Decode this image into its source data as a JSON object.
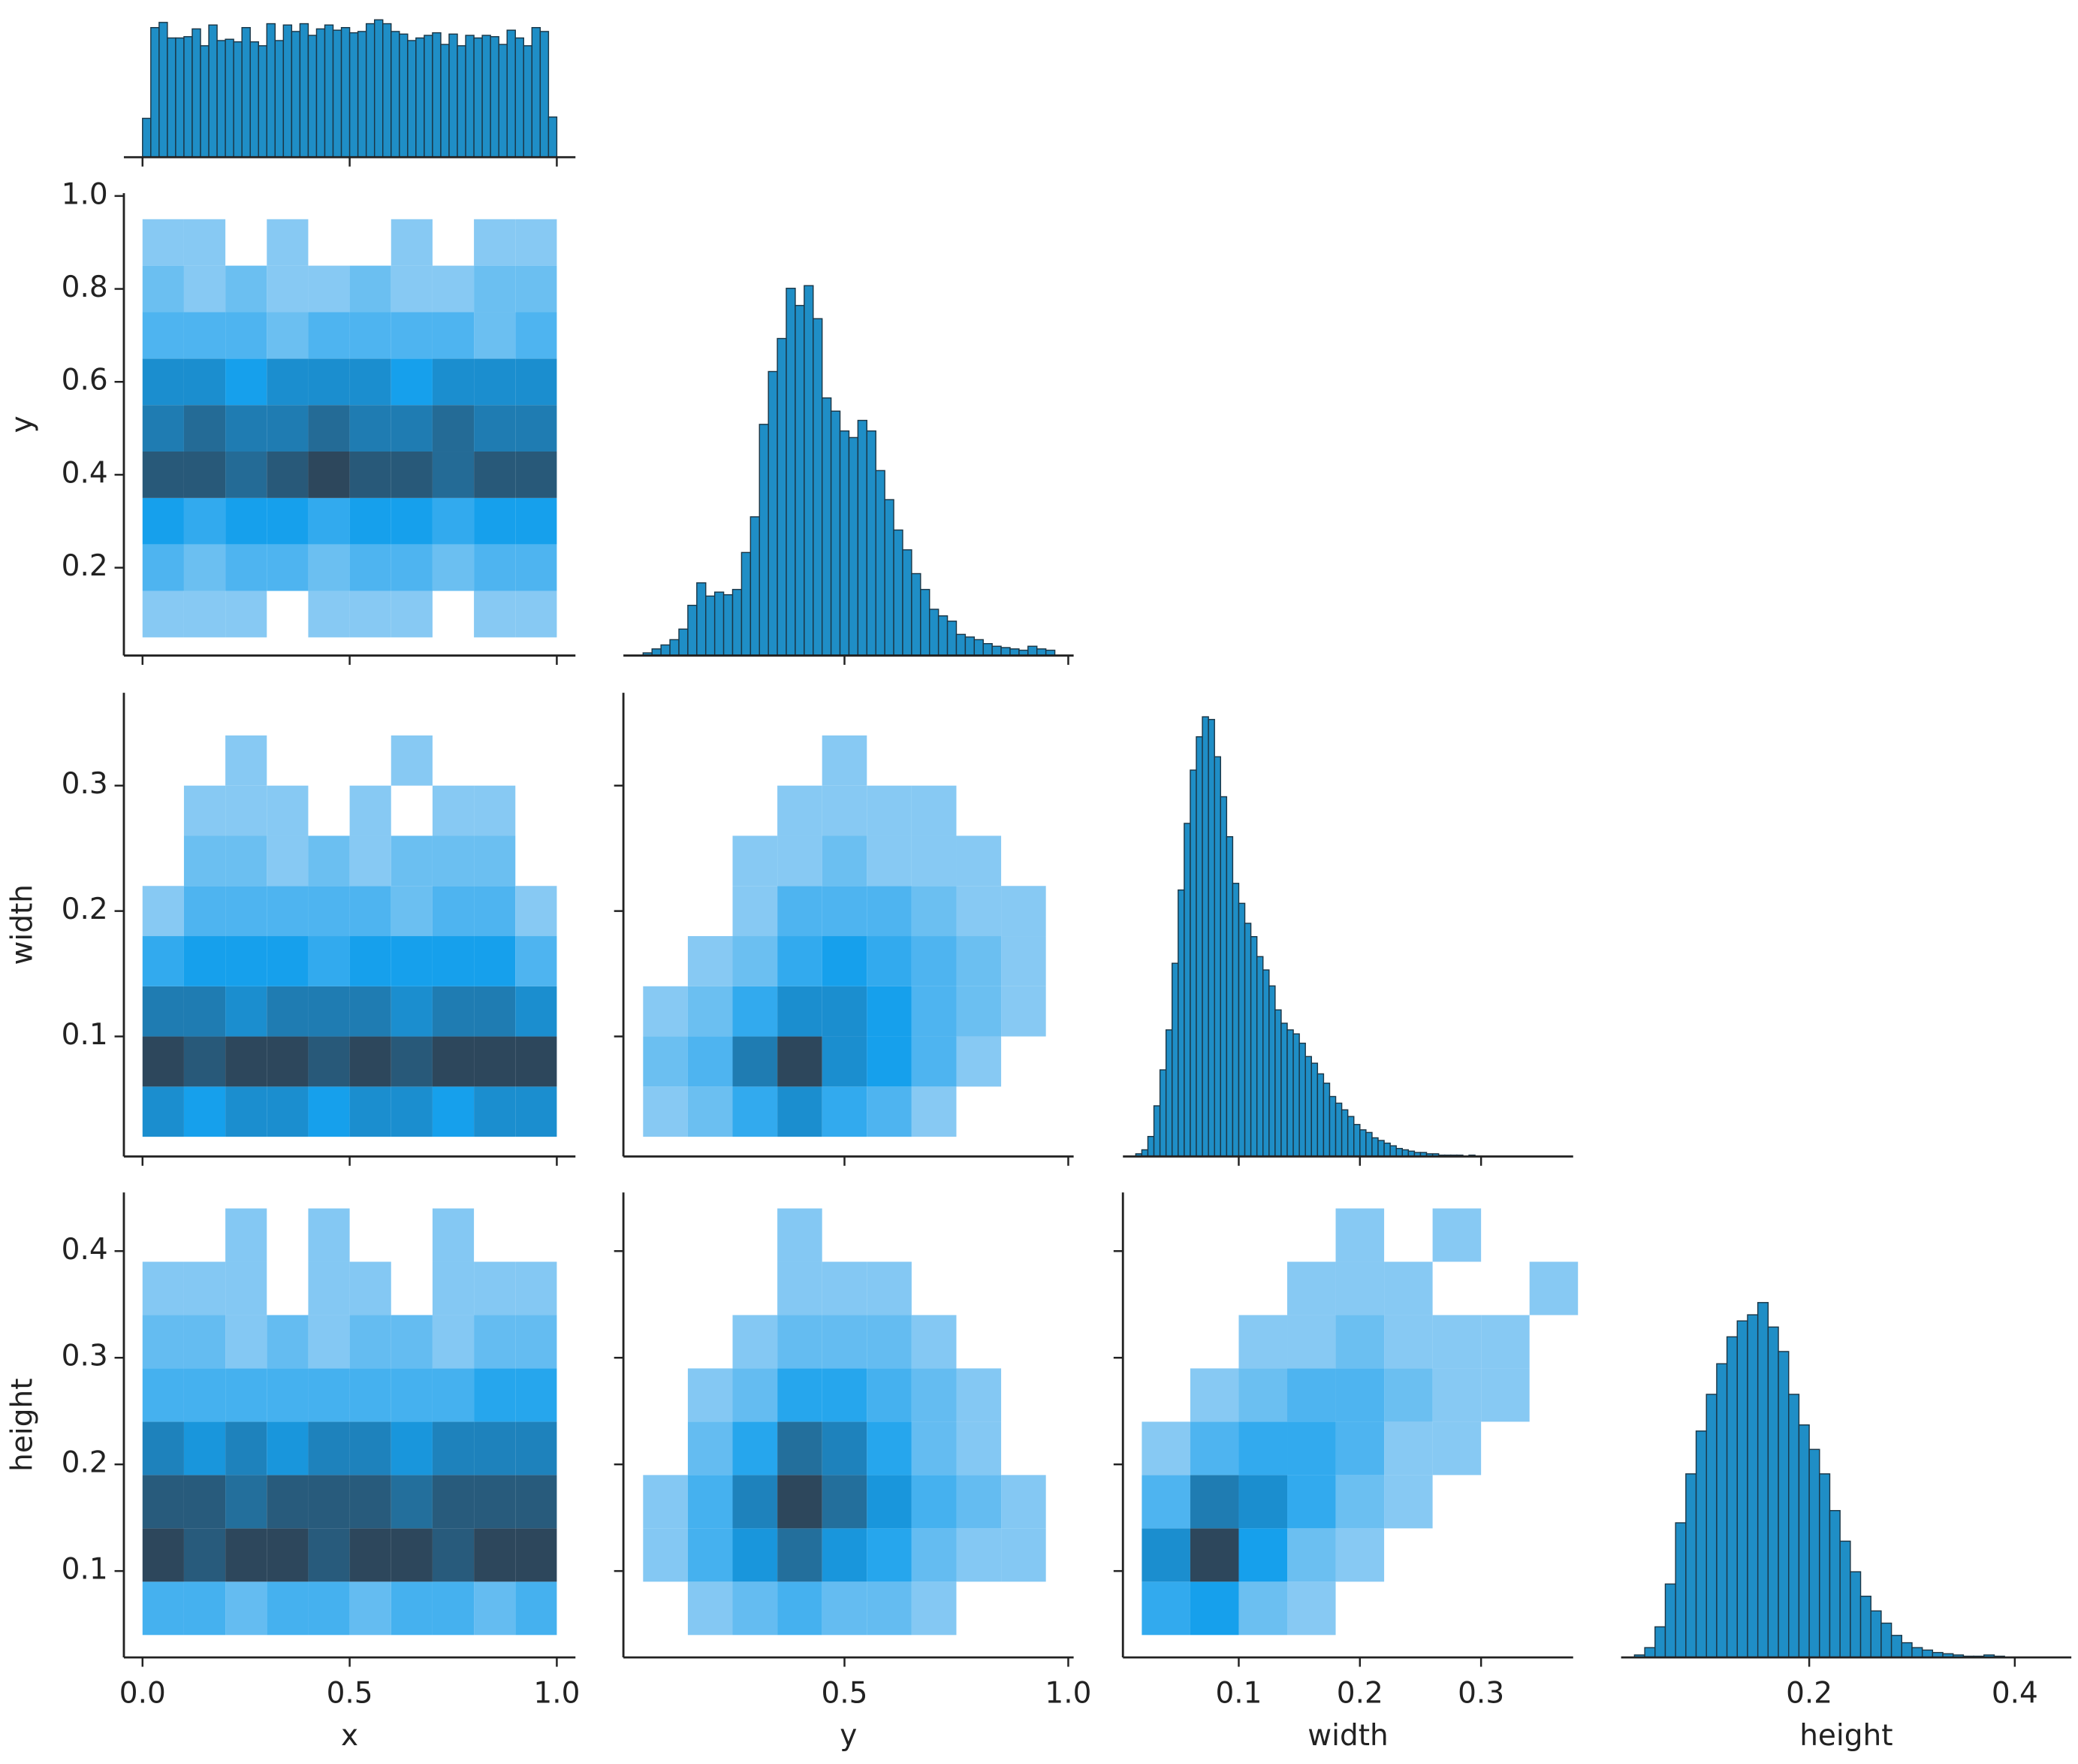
{
  "chart_data": [
    {
      "type": "histogram",
      "color": "#1f8ec6",
      "edgecolor": "#1b3646",
      "bins": [
        0,
        0.02,
        0.04,
        0.06,
        0.08,
        0.1,
        0.12,
        0.14,
        0.16,
        0.18,
        0.2,
        0.22,
        0.24,
        0.26,
        0.28,
        0.3,
        0.32,
        0.34,
        0.36,
        0.38,
        0.4,
        0.42,
        0.44,
        0.46,
        0.48,
        0.5,
        0.52,
        0.54,
        0.56,
        0.58,
        0.6,
        0.62,
        0.64,
        0.66,
        0.68,
        0.7,
        0.72,
        0.74,
        0.76,
        0.78,
        0.8,
        0.82,
        0.84,
        0.86,
        0.88,
        0.9,
        0.92,
        0.94,
        0.96,
        0.98,
        1
      ],
      "values": [
        30,
        100,
        104,
        92,
        92,
        93,
        99,
        86,
        102,
        90,
        91,
        89,
        100,
        89,
        86,
        103,
        90,
        102,
        97,
        103,
        94,
        99,
        102,
        98,
        100,
        96,
        97,
        103,
        106,
        103,
        97,
        95,
        90,
        92,
        94,
        96,
        87,
        95,
        86,
        94,
        92,
        94,
        93,
        87,
        98,
        92,
        86,
        100,
        97,
        31
      ],
      "xlim": [
        -0.045,
        1.045
      ],
      "ylim": [
        0,
        111
      ],
      "xticks": [
        {
          "value": 0,
          "label": "0.0"
        },
        {
          "value": 0.5,
          "label": "0.5"
        },
        {
          "value": 1,
          "label": "1.0"
        }
      ]
    },
    {
      "type": "hist2d",
      "cmap": [
        "#a3d3f5",
        "#16a0ec",
        "#2d475c"
      ],
      "ylabel": "y",
      "xbins": [
        0,
        0.1,
        0.2,
        0.3,
        0.4,
        0.5,
        0.6,
        0.7,
        0.8,
        0.9,
        1
      ],
      "ybins": [
        0.05,
        0.15,
        0.25,
        0.35,
        0.45,
        0.55,
        0.65,
        0.75,
        0.85,
        0.95
      ],
      "counts": [
        [
          1,
          1,
          1,
          0,
          1,
          1,
          1,
          0,
          1,
          1
        ],
        [
          3,
          2,
          3,
          3,
          2,
          3,
          3,
          2,
          3,
          3
        ],
        [
          5,
          4,
          5,
          5,
          4,
          5,
          5,
          4,
          5,
          5
        ],
        [
          9,
          9,
          8,
          9,
          10,
          9,
          9,
          8,
          9,
          9
        ],
        [
          7,
          8,
          7,
          7,
          8,
          7,
          7,
          8,
          7,
          7
        ],
        [
          6,
          6,
          5,
          6,
          6,
          6,
          5,
          6,
          6,
          6
        ],
        [
          3,
          3,
          3,
          2,
          3,
          3,
          3,
          3,
          2,
          3
        ],
        [
          2,
          1,
          2,
          1,
          1,
          2,
          1,
          1,
          2,
          2
        ],
        [
          1,
          1,
          0,
          1,
          0,
          0,
          1,
          0,
          1,
          1
        ]
      ],
      "xlim": [
        -0.045,
        1.045
      ],
      "ylim": [
        0.011,
        1.006
      ],
      "xticks": [
        {
          "value": 0,
          "label": "0.0"
        },
        {
          "value": 0.5,
          "label": "0.5"
        },
        {
          "value": 1,
          "label": "1.0"
        }
      ],
      "yticks": [
        0.2,
        0.4,
        0.6,
        0.8,
        {
          "value": 1,
          "label": "1.0"
        }
      ]
    },
    {
      "type": "histogram",
      "color": "#1f8ec6",
      "edgecolor": "#1b3646",
      "bins": [
        0.05,
        0.07,
        0.09,
        0.11,
        0.13,
        0.15,
        0.17,
        0.19,
        0.21,
        0.23,
        0.25,
        0.27,
        0.29,
        0.31,
        0.33,
        0.35,
        0.37,
        0.39,
        0.41,
        0.43,
        0.45,
        0.47,
        0.49,
        0.51,
        0.53,
        0.55,
        0.57,
        0.59,
        0.61,
        0.63,
        0.65,
        0.67,
        0.69,
        0.71,
        0.73,
        0.75,
        0.77,
        0.79,
        0.81,
        0.83,
        0.85,
        0.87,
        0.89,
        0.91,
        0.93,
        0.95,
        0.97
      ],
      "values": [
        2,
        5,
        8,
        12,
        20,
        38,
        55,
        45,
        48,
        46,
        50,
        78,
        105,
        175,
        215,
        240,
        278,
        265,
        280,
        255,
        195,
        185,
        170,
        165,
        178,
        170,
        140,
        118,
        95,
        80,
        62,
        50,
        35,
        30,
        26,
        16,
        14,
        12,
        9,
        7,
        6,
        5,
        4,
        7,
        5,
        4
      ],
      "xlim": [
        0.006,
        1.012
      ],
      "ylim": [
        0,
        350
      ],
      "xticks": [
        0.5,
        {
          "value": 1,
          "label": "1.0"
        }
      ]
    },
    {
      "type": "hist2d",
      "cmap": [
        "#a3d3f5",
        "#16a0ec",
        "#2d475c"
      ],
      "ylabel": "width",
      "xbins": [
        0,
        0.1,
        0.2,
        0.3,
        0.4,
        0.5,
        0.6,
        0.7,
        0.8,
        0.9,
        1
      ],
      "ybins": [
        0.02,
        0.06,
        0.1,
        0.14,
        0.18,
        0.22,
        0.26,
        0.3,
        0.34
      ],
      "counts": [
        [
          6,
          5,
          6,
          6,
          5,
          6,
          6,
          5,
          6,
          6
        ],
        [
          10,
          9,
          10,
          10,
          9,
          10,
          9,
          10,
          10,
          10
        ],
        [
          7,
          7,
          6,
          7,
          7,
          7,
          6,
          7,
          7,
          6
        ],
        [
          4,
          5,
          5,
          5,
          4,
          5,
          5,
          5,
          5,
          3
        ],
        [
          1,
          3,
          3,
          3,
          3,
          3,
          2,
          3,
          3,
          1
        ],
        [
          0,
          2,
          2,
          1,
          2,
          1,
          2,
          2,
          2,
          0
        ],
        [
          0,
          1,
          1,
          1,
          0,
          1,
          0,
          1,
          1,
          0
        ],
        [
          0,
          0,
          1,
          0,
          0,
          0,
          1,
          0,
          0,
          0
        ]
      ],
      "xlim": [
        -0.045,
        1.045
      ],
      "ylim": [
        0.0043,
        0.374
      ],
      "xticks": [
        {
          "value": 0,
          "label": "0.0"
        },
        {
          "value": 0.5,
          "label": "0.5"
        },
        {
          "value": 1,
          "label": "1.0"
        }
      ],
      "yticks": [
        0.1,
        0.2,
        0.3
      ]
    },
    {
      "type": "hist2d",
      "cmap": [
        "#a3d3f5",
        "#16a0ec",
        "#2d475c"
      ],
      "xbins": [
        0.05,
        0.15,
        0.25,
        0.35,
        0.45,
        0.55,
        0.65,
        0.75,
        0.85,
        0.95
      ],
      "ybins": [
        0.02,
        0.06,
        0.1,
        0.14,
        0.18,
        0.22,
        0.26,
        0.3,
        0.34
      ],
      "counts": [
        [
          1,
          2,
          4,
          6,
          4,
          3,
          1,
          0,
          0
        ],
        [
          2,
          3,
          7,
          10,
          6,
          5,
          3,
          1,
          0
        ],
        [
          1,
          2,
          4,
          6,
          6,
          5,
          3,
          2,
          1
        ],
        [
          0,
          1,
          2,
          4,
          5,
          4,
          3,
          2,
          1
        ],
        [
          0,
          0,
          1,
          3,
          3,
          3,
          2,
          1,
          1
        ],
        [
          0,
          0,
          1,
          1,
          2,
          1,
          1,
          1,
          0
        ],
        [
          0,
          0,
          0,
          1,
          1,
          1,
          1,
          0,
          0
        ],
        [
          0,
          0,
          0,
          0,
          1,
          0,
          0,
          0,
          0
        ]
      ],
      "xlim": [
        0.006,
        1.012
      ],
      "ylim": [
        0.0043,
        0.374
      ],
      "xticks": [
        0.5,
        {
          "value": 1,
          "label": "1.0"
        }
      ],
      "yticks": [
        0.1,
        0.2,
        0.3
      ]
    },
    {
      "type": "histogram",
      "color": "#1f8ec6",
      "edgecolor": "#1b3646",
      "bins": [
        0.015,
        0.02,
        0.025,
        0.03,
        0.035,
        0.04,
        0.045,
        0.05,
        0.055,
        0.06,
        0.065,
        0.07,
        0.075,
        0.08,
        0.085,
        0.09,
        0.095,
        0.1,
        0.105,
        0.11,
        0.115,
        0.12,
        0.125,
        0.13,
        0.135,
        0.14,
        0.145,
        0.15,
        0.155,
        0.16,
        0.165,
        0.17,
        0.175,
        0.18,
        0.185,
        0.19,
        0.195,
        0.2,
        0.205,
        0.21,
        0.215,
        0.22,
        0.225,
        0.23,
        0.235,
        0.24,
        0.245,
        0.25,
        0.255,
        0.26,
        0.265,
        0.27,
        0.275,
        0.28,
        0.285,
        0.29,
        0.295
      ],
      "values": [
        2,
        5,
        15,
        38,
        65,
        95,
        145,
        200,
        250,
        290,
        315,
        330,
        328,
        300,
        270,
        240,
        205,
        190,
        175,
        165,
        150,
        140,
        128,
        110,
        100,
        95,
        92,
        85,
        75,
        70,
        62,
        55,
        45,
        40,
        35,
        30,
        24,
        20,
        18,
        14,
        12,
        10,
        8,
        6,
        5,
        4,
        3,
        3,
        2,
        2,
        1,
        1,
        1,
        1,
        0,
        1
      ],
      "xlim": [
        0.0044,
        0.376
      ],
      "ylim": [
        0,
        348
      ],
      "xticks": [
        0.1,
        0.2,
        0.3
      ]
    },
    {
      "type": "hist2d",
      "cmap": [
        "#a3d3f5",
        "#16a0ec",
        "#2d475c"
      ],
      "xlabel": "x",
      "ylabel": "height",
      "xbins": [
        0,
        0.1,
        0.2,
        0.3,
        0.4,
        0.5,
        0.6,
        0.7,
        0.8,
        0.9,
        1
      ],
      "ybins": [
        0.04,
        0.09,
        0.14,
        0.19,
        0.24,
        0.29,
        0.34,
        0.39,
        0.44
      ],
      "counts": [
        [
          3,
          3,
          2,
          3,
          3,
          2,
          3,
          3,
          2,
          3
        ],
        [
          9,
          8,
          9,
          9,
          8,
          9,
          9,
          8,
          9,
          9
        ],
        [
          8,
          8,
          7,
          8,
          8,
          8,
          7,
          8,
          8,
          8
        ],
        [
          6,
          5,
          6,
          5,
          6,
          6,
          5,
          6,
          6,
          6
        ],
        [
          3,
          3,
          3,
          3,
          3,
          3,
          3,
          3,
          4,
          4
        ],
        [
          2,
          2,
          1,
          2,
          1,
          2,
          2,
          1,
          2,
          2
        ],
        [
          1,
          1,
          1,
          0,
          1,
          1,
          0,
          1,
          1,
          1
        ],
        [
          0,
          0,
          1,
          0,
          1,
          0,
          0,
          1,
          0,
          0
        ]
      ],
      "xlim": [
        -0.045,
        1.045
      ],
      "ylim": [
        0.019,
        0.455
      ],
      "xticks": [
        {
          "value": 0,
          "label": "0.0"
        },
        {
          "value": 0.5,
          "label": "0.5"
        },
        {
          "value": 1,
          "label": "1.0"
        }
      ],
      "yticks": [
        0.1,
        0.2,
        0.3,
        0.4
      ]
    },
    {
      "type": "hist2d",
      "cmap": [
        "#a3d3f5",
        "#16a0ec",
        "#2d475c"
      ],
      "xlabel": "y",
      "xbins": [
        0.05,
        0.15,
        0.25,
        0.35,
        0.45,
        0.55,
        0.65,
        0.75,
        0.85,
        0.95
      ],
      "ybins": [
        0.04,
        0.09,
        0.14,
        0.19,
        0.24,
        0.29,
        0.34,
        0.39,
        0.44
      ],
      "counts": [
        [
          0,
          1,
          2,
          3,
          2,
          2,
          1,
          0,
          0
        ],
        [
          1,
          3,
          5,
          7,
          5,
          4,
          2,
          1,
          1
        ],
        [
          1,
          3,
          6,
          9,
          7,
          5,
          3,
          2,
          1
        ],
        [
          0,
          2,
          4,
          7,
          6,
          4,
          2,
          1,
          0
        ],
        [
          0,
          1,
          2,
          4,
          4,
          3,
          2,
          1,
          0
        ],
        [
          0,
          0,
          1,
          2,
          2,
          2,
          1,
          0,
          0
        ],
        [
          0,
          0,
          0,
          1,
          1,
          1,
          0,
          0,
          0
        ],
        [
          0,
          0,
          0,
          1,
          0,
          0,
          0,
          0,
          0
        ]
      ],
      "xlim": [
        0.006,
        1.012
      ],
      "ylim": [
        0.019,
        0.455
      ],
      "xticks": [
        0.5,
        {
          "value": 1,
          "label": "1.0"
        }
      ],
      "yticks": [
        0.1,
        0.2,
        0.3,
        0.4
      ]
    },
    {
      "type": "hist2d",
      "cmap": [
        "#a3d3f5",
        "#16a0ec",
        "#2d475c"
      ],
      "xlabel": "width",
      "xbins": [
        0.02,
        0.06,
        0.1,
        0.14,
        0.18,
        0.22,
        0.26,
        0.3,
        0.34,
        0.38
      ],
      "ybins": [
        0.04,
        0.09,
        0.14,
        0.19,
        0.24,
        0.29,
        0.34,
        0.39,
        0.44
      ],
      "counts": [
        [
          4,
          5,
          2,
          1,
          0,
          0,
          0,
          0,
          0
        ],
        [
          6,
          10,
          5,
          2,
          1,
          0,
          0,
          0,
          0
        ],
        [
          3,
          7,
          6,
          4,
          2,
          1,
          0,
          0,
          0
        ],
        [
          1,
          3,
          4,
          4,
          3,
          1,
          1,
          0,
          0
        ],
        [
          0,
          1,
          2,
          3,
          3,
          2,
          1,
          1,
          0
        ],
        [
          0,
          0,
          1,
          1,
          2,
          1,
          1,
          1,
          0
        ],
        [
          0,
          0,
          0,
          1,
          1,
          1,
          0,
          0,
          1
        ],
        [
          0,
          0,
          0,
          0,
          1,
          0,
          1,
          0,
          0
        ]
      ],
      "xlim": [
        0.0044,
        0.376
      ],
      "ylim": [
        0.019,
        0.455
      ],
      "xticks": [
        0.1,
        0.2,
        0.3
      ],
      "yticks": [
        0.1,
        0.2,
        0.3,
        0.4
      ]
    },
    {
      "type": "histogram",
      "color": "#1f8ec6",
      "edgecolor": "#1b3646",
      "xlabel": "height",
      "bins": [
        0.03,
        0.04,
        0.05,
        0.06,
        0.07,
        0.08,
        0.09,
        0.1,
        0.11,
        0.12,
        0.13,
        0.14,
        0.15,
        0.16,
        0.17,
        0.18,
        0.19,
        0.2,
        0.21,
        0.22,
        0.23,
        0.24,
        0.25,
        0.26,
        0.27,
        0.28,
        0.29,
        0.3,
        0.31,
        0.32,
        0.33,
        0.34,
        0.35,
        0.36,
        0.37,
        0.38,
        0.39
      ],
      "values": [
        2,
        8,
        25,
        60,
        110,
        150,
        185,
        215,
        240,
        262,
        275,
        280,
        290,
        270,
        250,
        215,
        190,
        170,
        150,
        120,
        95,
        70,
        50,
        38,
        28,
        18,
        12,
        8,
        6,
        4,
        3,
        2,
        1,
        1,
        2,
        1
      ],
      "xlim": [
        0.017,
        0.455
      ],
      "ylim": [
        0,
        380
      ],
      "xticks": [
        0.2,
        0.4
      ]
    }
  ]
}
